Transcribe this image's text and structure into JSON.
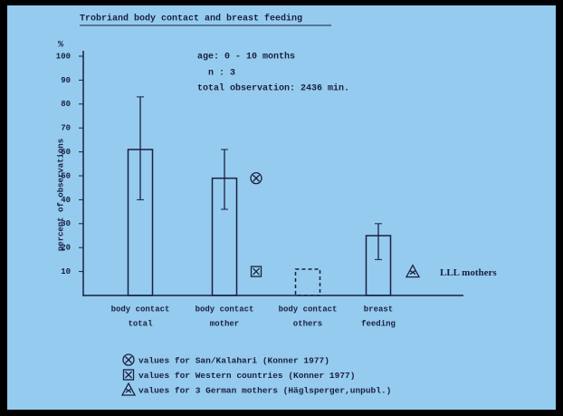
{
  "chart_data": {
    "type": "bar",
    "title": "Trobriand body contact and breast feeding",
    "annotations": [
      "age:  0 - 10 months",
      "n :  3",
      "total observation: 2436 min."
    ],
    "y_unit": "%",
    "y_label": "percent of observations",
    "categories": [
      [
        "body contact",
        "total"
      ],
      [
        "body contact",
        "mother"
      ],
      [
        "body contact",
        "others"
      ],
      [
        "breast",
        "feeding"
      ]
    ],
    "series": [
      {
        "values": [
          61,
          49,
          11,
          25
        ],
        "error_low": [
          40,
          36,
          null,
          15
        ],
        "error_high": [
          83,
          61,
          null,
          30
        ],
        "dashed": [
          false,
          false,
          true,
          false
        ],
        "color": "#1a2040"
      }
    ],
    "ylim": [
      0,
      100
    ],
    "yticks": [
      10,
      20,
      30,
      40,
      50,
      60,
      70,
      80,
      90,
      100
    ],
    "markers": [
      {
        "name": "values for San/Kalahari (Konner 1977)",
        "symbol": "circle-x",
        "values": [
          null,
          49,
          null,
          null
        ]
      },
      {
        "name": "values for Western countries (Konner 1977)",
        "symbol": "square-x",
        "values": [
          null,
          10,
          null,
          null
        ]
      },
      {
        "name": "values for 3 German mothers (Häglsperger,unpubl.)",
        "symbol": "triangle-x",
        "values": [
          null,
          null,
          null,
          10
        ],
        "label": "LLL mothers"
      }
    ]
  }
}
